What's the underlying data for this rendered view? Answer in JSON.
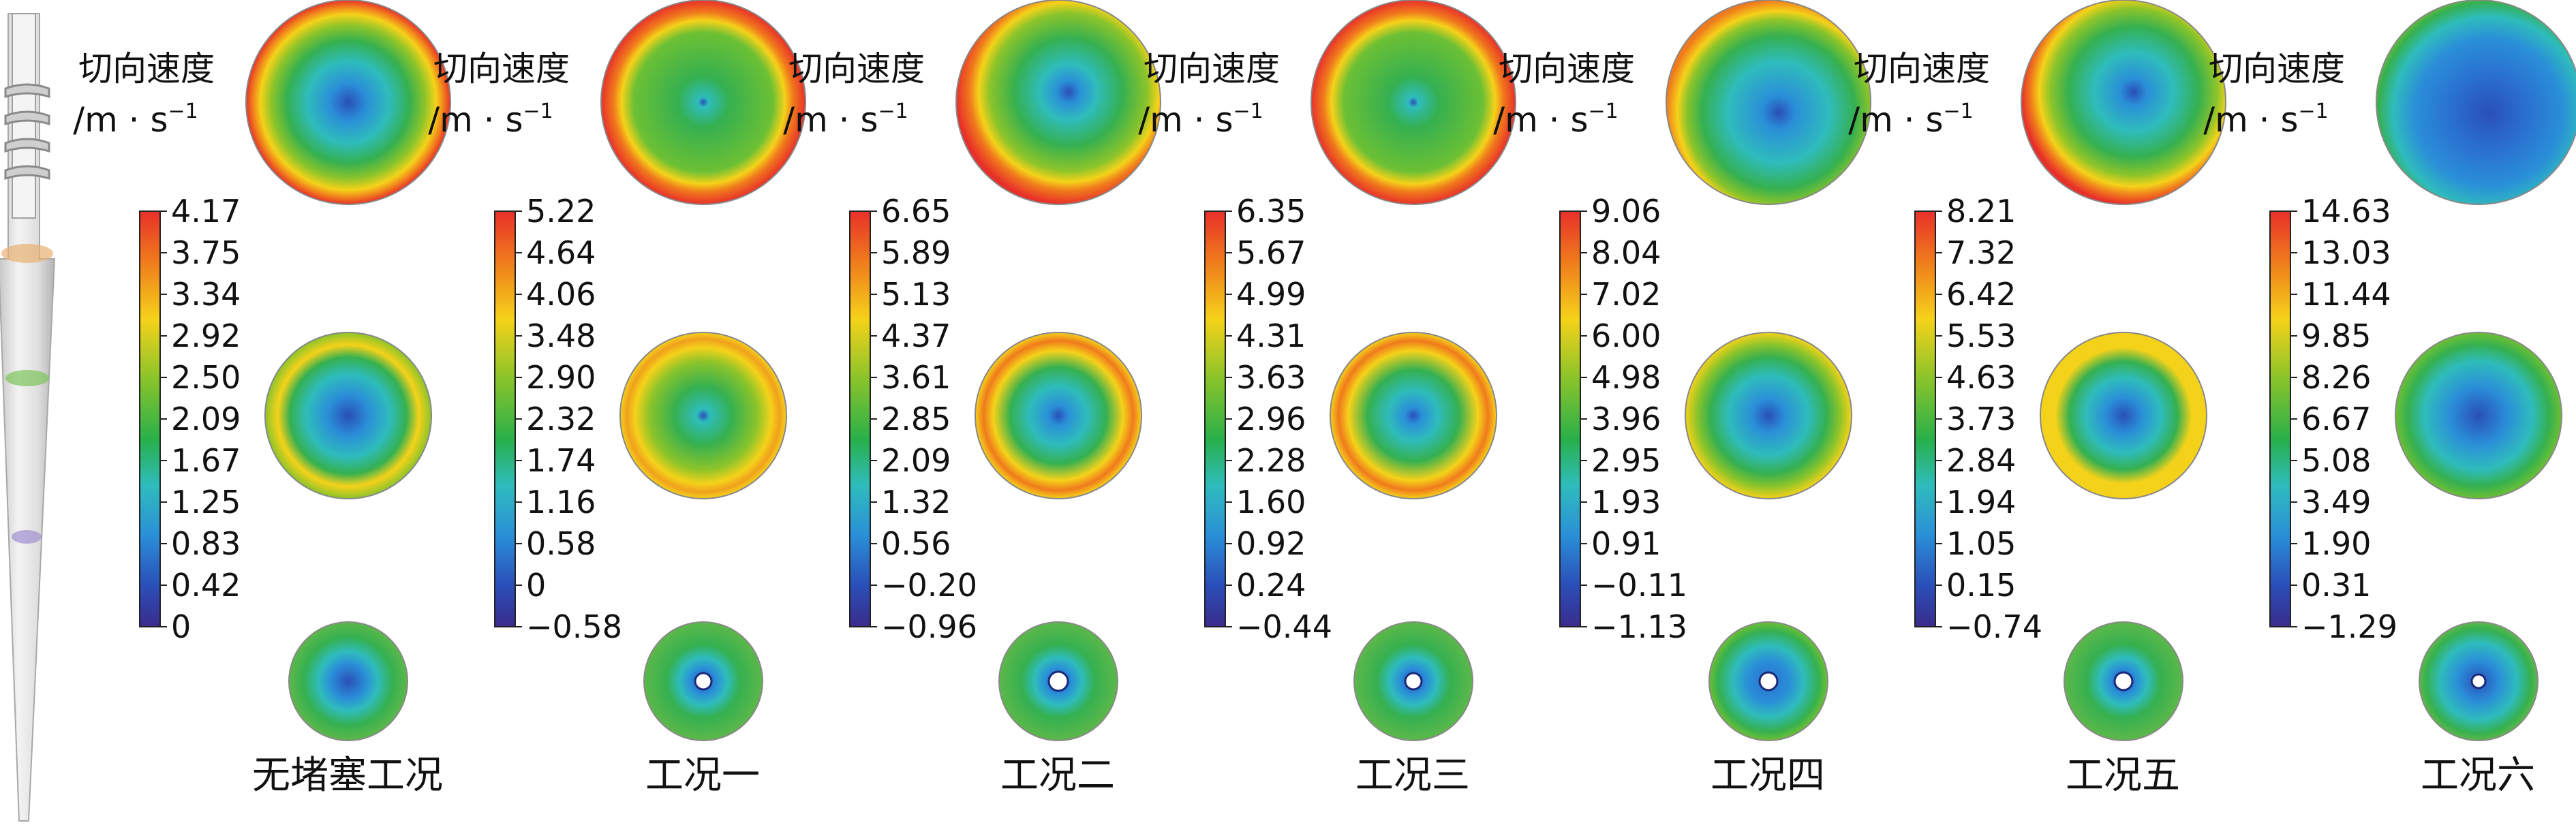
{
  "legend_title_line1": "切向速度",
  "legend_title_line2": "/m · s",
  "legend_title_sup": "−1",
  "cases": [
    {
      "name": "无堵塞工况",
      "ticks": [
        "4.17",
        "3.75",
        "3.34",
        "2.92",
        "2.50",
        "2.09",
        "1.67",
        "1.25",
        "0.83",
        "0.42",
        "0"
      ]
    },
    {
      "name": "工况一",
      "ticks": [
        "5.22",
        "4.64",
        "4.06",
        "3.48",
        "2.90",
        "2.32",
        "1.74",
        "1.16",
        "0.58",
        "0",
        "−0.58"
      ]
    },
    {
      "name": "工况二",
      "ticks": [
        "6.65",
        "5.89",
        "5.13",
        "4.37",
        "3.61",
        "2.85",
        "2.09",
        "1.32",
        "0.56",
        "−0.20",
        "−0.96"
      ]
    },
    {
      "name": "工况三",
      "ticks": [
        "6.35",
        "5.67",
        "4.99",
        "4.31",
        "3.63",
        "2.96",
        "2.28",
        "1.60",
        "0.92",
        "0.24",
        "−0.44"
      ]
    },
    {
      "name": "工况四",
      "ticks": [
        "9.06",
        "8.04",
        "7.02",
        "6.00",
        "4.98",
        "3.96",
        "2.95",
        "1.93",
        "0.91",
        "−0.11",
        "−1.13"
      ]
    },
    {
      "name": "工况五",
      "ticks": [
        "8.21",
        "7.32",
        "6.42",
        "5.53",
        "4.63",
        "3.73",
        "2.84",
        "1.94",
        "1.05",
        "0.15",
        "−0.74"
      ]
    },
    {
      "name": "工况六",
      "ticks": [
        "14.63",
        "13.03",
        "11.44",
        "9.85",
        "8.26",
        "6.67",
        "5.08",
        "3.49",
        "1.90",
        "0.31",
        "−1.29"
      ]
    }
  ],
  "colors": {
    "colorbar_stops": [
      "#e8302a",
      "#f0701c",
      "#f5d21a",
      "#7cc42a",
      "#28b04a",
      "#2fb8b8",
      "#2a8fd8",
      "#2a4fb8",
      "#3a2c8c"
    ]
  }
}
